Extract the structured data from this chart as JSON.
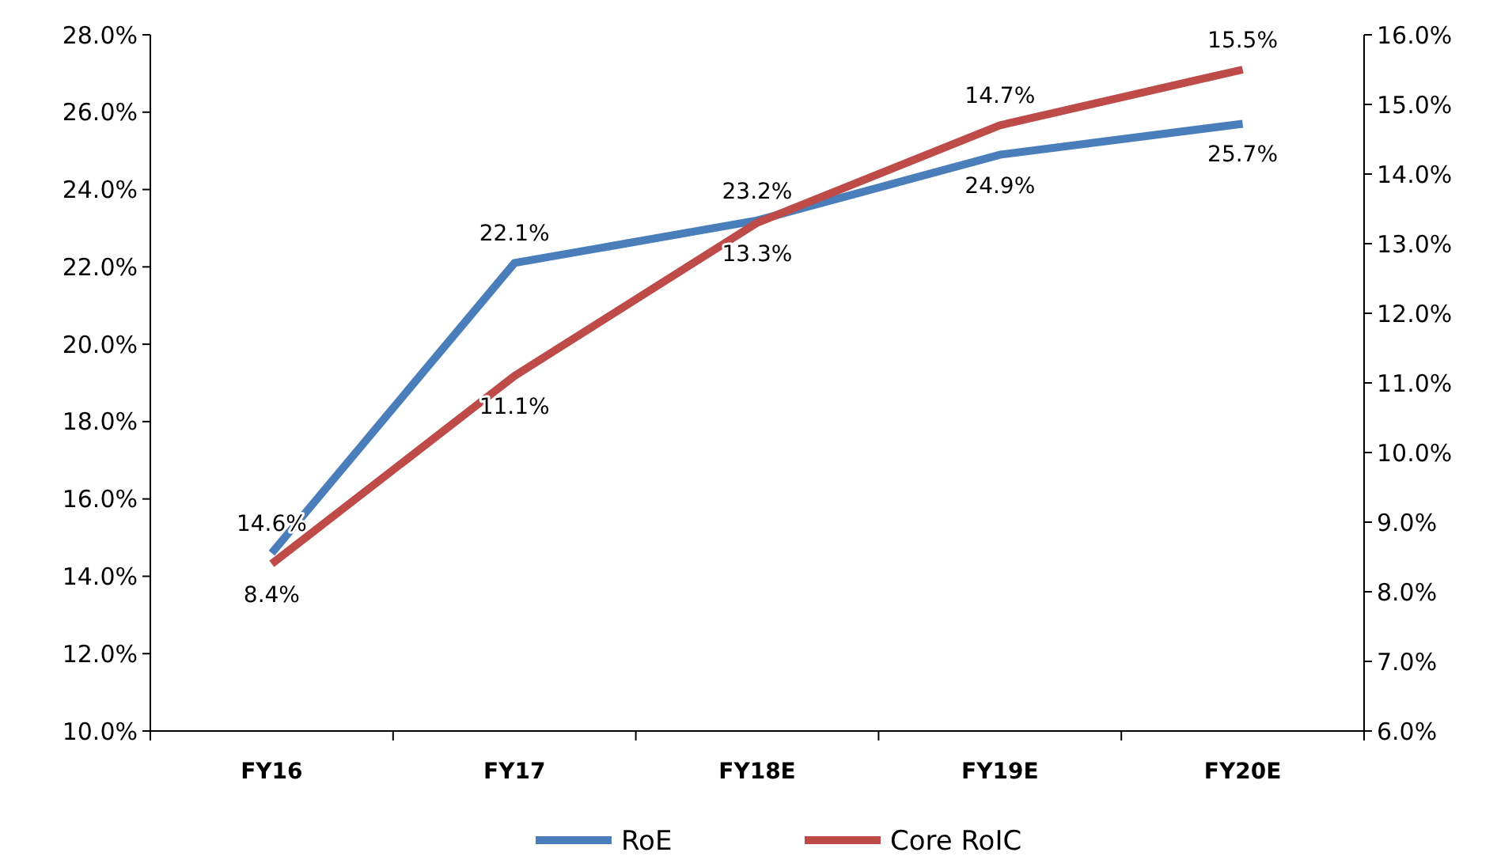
{
  "chart_data": {
    "type": "line",
    "categories": [
      "FY16",
      "FY17",
      "FY18E",
      "FY19E",
      "FY20E"
    ],
    "series": [
      {
        "name": "RoE",
        "color": "#4a7ebb",
        "values": [
          14.6,
          22.1,
          23.2,
          24.9,
          25.7
        ],
        "value_labels": [
          "14.6%",
          "22.1%",
          "23.2%",
          "24.9%",
          "25.7%"
        ]
      },
      {
        "name": "Core RoIC",
        "color": "#be4b48",
        "axis": "y2",
        "values": [
          8.4,
          11.1,
          13.3,
          14.7,
          15.5
        ],
        "value_labels": [
          "8.4%",
          "11.1%",
          "13.3%",
          "14.7%",
          "15.5%"
        ]
      }
    ],
    "ylim": [
      10,
      28
    ],
    "yticks": [
      {
        "value": 10,
        "label": "10.0%"
      },
      {
        "value": 12,
        "label": "12.0%"
      },
      {
        "value": 14,
        "label": "14.0%"
      },
      {
        "value": 16,
        "label": "16.0%"
      },
      {
        "value": 18,
        "label": "18.0%"
      },
      {
        "value": 20,
        "label": "20.0%"
      },
      {
        "value": 22,
        "label": "22.0%"
      },
      {
        "value": 24,
        "label": "24.0%"
      },
      {
        "value": 26,
        "label": "26.0%"
      },
      {
        "value": 28,
        "label": "28.0%"
      }
    ],
    "y2lim": [
      6,
      16
    ],
    "y2ticks": [
      {
        "value": 6,
        "label": "6.0%"
      },
      {
        "value": 7,
        "label": "7.0%"
      },
      {
        "value": 8,
        "label": "8.0%"
      },
      {
        "value": 9,
        "label": "9.0%"
      },
      {
        "value": 10,
        "label": "10.0%"
      },
      {
        "value": 11,
        "label": "11.0%"
      },
      {
        "value": 12,
        "label": "12.0%"
      },
      {
        "value": 13,
        "label": "13.0%"
      },
      {
        "value": 14,
        "label": "14.0%"
      },
      {
        "value": 15,
        "label": "15.0%"
      },
      {
        "value": 16,
        "label": "16.0%"
      }
    ],
    "grid": false,
    "legend": "bottom",
    "marker": "none",
    "line_style": "solid"
  }
}
